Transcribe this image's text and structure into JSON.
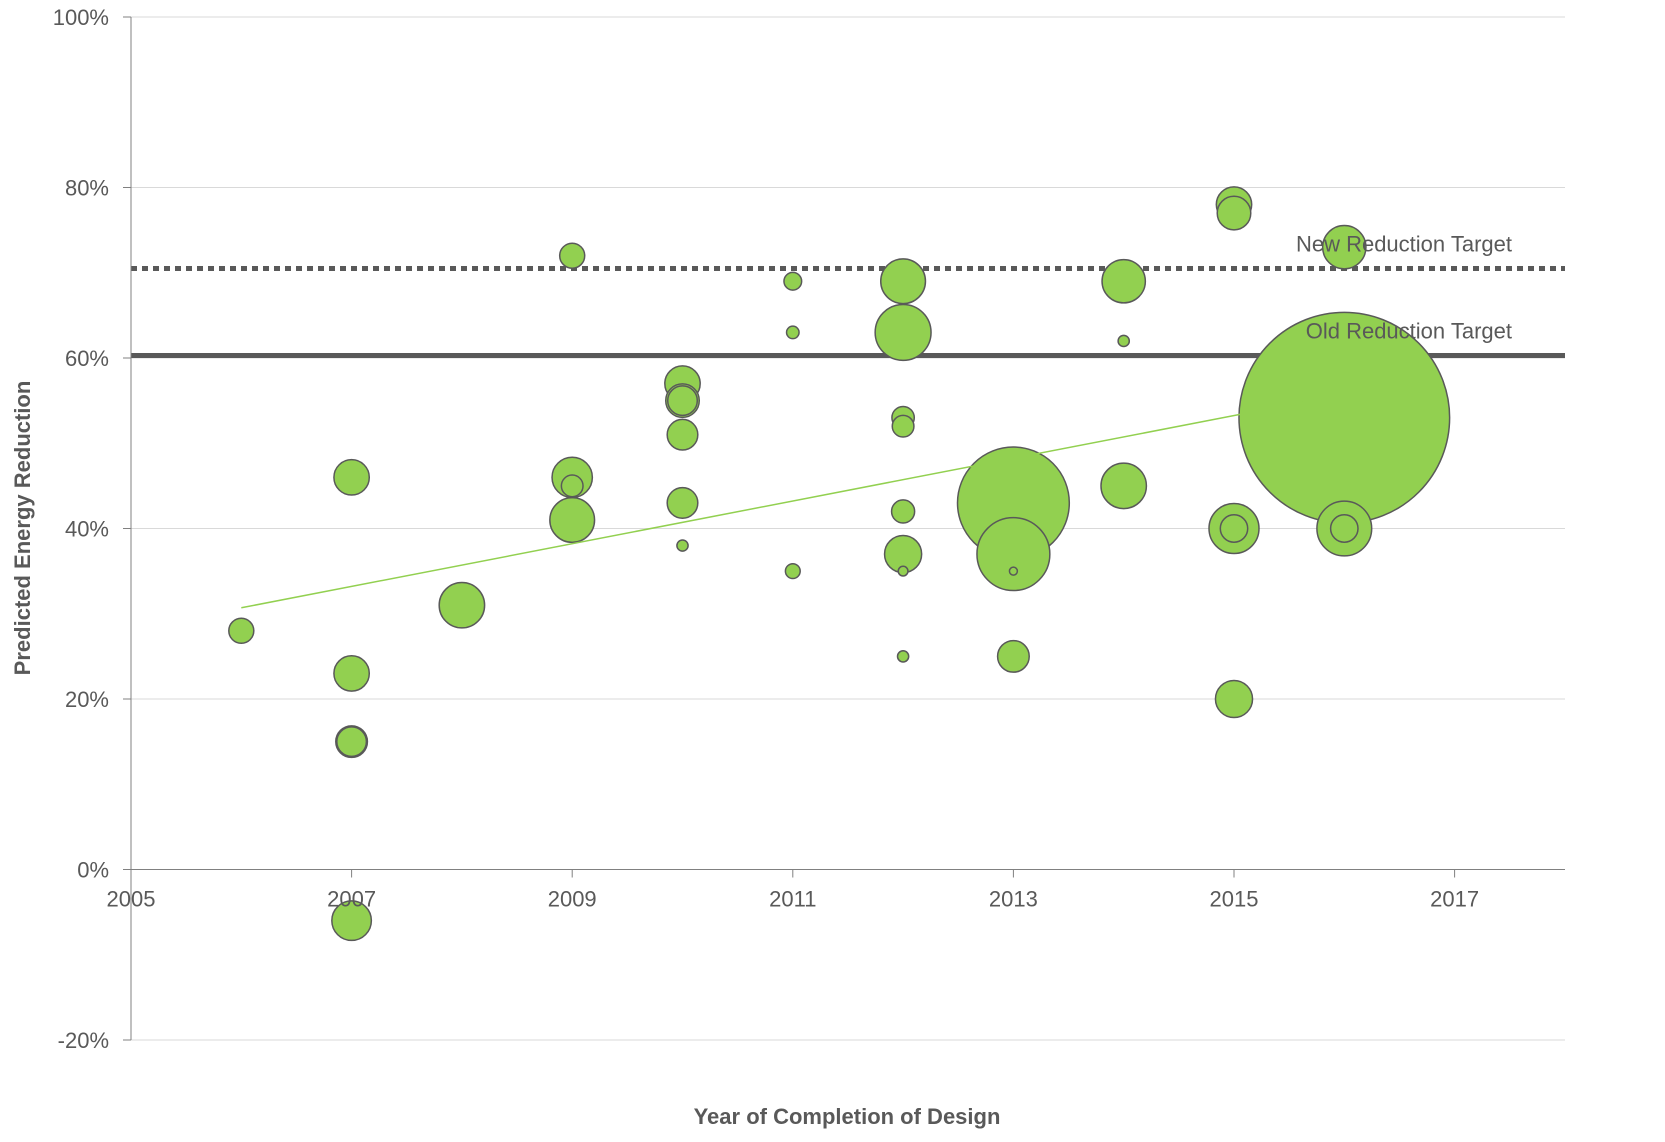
{
  "chart_data": {
    "type": "scatter",
    "subtype": "bubble",
    "title": "",
    "xlabel": "Year of Completion of Design",
    "ylabel": "Predicted Energy Reduction",
    "xlim": [
      2005,
      2018
    ],
    "ylim": [
      -0.2,
      1.0
    ],
    "x_ticks": [
      2005,
      2007,
      2009,
      2011,
      2013,
      2015,
      2017
    ],
    "x_tick_labels": [
      "2005",
      "2007",
      "2009",
      "2011",
      "2013",
      "2015",
      "2017"
    ],
    "y_ticks": [
      -0.2,
      0,
      0.2,
      0.4,
      0.6,
      0.8,
      1.0
    ],
    "y_tick_labels": [
      "-20%",
      "0%",
      "20%",
      "40%",
      "60%",
      "80%",
      "100%"
    ],
    "grid": "horizontal",
    "legend": "none",
    "colors": {
      "bubble_fill": "#92d050",
      "bubble_stroke": "#595959",
      "trend": "#92d050",
      "reference": "#595959",
      "grid": "#d9d9d9",
      "axis": "#808080"
    },
    "points": [
      {
        "x": 2006,
        "y": 0.28,
        "size": 1.0
      },
      {
        "x": 2007,
        "y": 0.46,
        "size": 2.0
      },
      {
        "x": 2007,
        "y": 0.23,
        "size": 2.0
      },
      {
        "x": 2007,
        "y": 0.15,
        "size": 1.6
      },
      {
        "x": 2007,
        "y": 0.15,
        "size": 1.4
      },
      {
        "x": 2007,
        "y": -0.06,
        "size": 2.5
      },
      {
        "x": 2008,
        "y": 0.31,
        "size": 3.3
      },
      {
        "x": 2009,
        "y": 0.72,
        "size": 1.0
      },
      {
        "x": 2009,
        "y": 0.46,
        "size": 2.6
      },
      {
        "x": 2009,
        "y": 0.41,
        "size": 3.2
      },
      {
        "x": 2009,
        "y": 0.45,
        "size": 0.75
      },
      {
        "x": 2010,
        "y": 0.57,
        "size": 2.0
      },
      {
        "x": 2010,
        "y": 0.55,
        "size": 1.8
      },
      {
        "x": 2010,
        "y": 0.55,
        "size": 1.4
      },
      {
        "x": 2010,
        "y": 0.51,
        "size": 1.5
      },
      {
        "x": 2010,
        "y": 0.43,
        "size": 1.5
      },
      {
        "x": 2010,
        "y": 0.38,
        "size": 0.2
      },
      {
        "x": 2011,
        "y": 0.69,
        "size": 0.5
      },
      {
        "x": 2011,
        "y": 0.63,
        "size": 0.25
      },
      {
        "x": 2011,
        "y": 0.35,
        "size": 0.35
      },
      {
        "x": 2012,
        "y": 0.69,
        "size": 3.2
      },
      {
        "x": 2012,
        "y": 0.63,
        "size": 5.0
      },
      {
        "x": 2012,
        "y": 0.53,
        "size": 0.8
      },
      {
        "x": 2012,
        "y": 0.52,
        "size": 0.75
      },
      {
        "x": 2012,
        "y": 0.42,
        "size": 0.85
      },
      {
        "x": 2012,
        "y": 0.37,
        "size": 2.2
      },
      {
        "x": 2012,
        "y": 0.35,
        "size": 0.15
      },
      {
        "x": 2012,
        "y": 0.25,
        "size": 0.2
      },
      {
        "x": 2013,
        "y": 0.43,
        "size": 20.0
      },
      {
        "x": 2013,
        "y": 0.37,
        "size": 8.5
      },
      {
        "x": 2013,
        "y": 0.35,
        "size": 0.1
      },
      {
        "x": 2013,
        "y": 0.25,
        "size": 1.6
      },
      {
        "x": 2014,
        "y": 0.69,
        "size": 3.0
      },
      {
        "x": 2014,
        "y": 0.62,
        "size": 0.2
      },
      {
        "x": 2014,
        "y": 0.45,
        "size": 3.3
      },
      {
        "x": 2015,
        "y": 0.78,
        "size": 2.0
      },
      {
        "x": 2015,
        "y": 0.77,
        "size": 1.8
      },
      {
        "x": 2015,
        "y": 0.4,
        "size": 4.0
      },
      {
        "x": 2015,
        "y": 0.4,
        "size": 1.2
      },
      {
        "x": 2015,
        "y": 0.2,
        "size": 2.2
      },
      {
        "x": 2016,
        "y": 0.73,
        "size": 3.0
      },
      {
        "x": 2016,
        "y": 0.53,
        "size": 71.0
      },
      {
        "x": 2016,
        "y": 0.4,
        "size": 4.8
      },
      {
        "x": 2016,
        "y": 0.4,
        "size": 1.2
      }
    ],
    "trendline": {
      "type": "linear",
      "x": [
        2006,
        2015.9
      ],
      "y": [
        0.307,
        0.555
      ]
    },
    "reference_lines": [
      {
        "label": "New Reduction Target",
        "y": 0.705,
        "style": "dotted"
      },
      {
        "label": "Old Reduction Target",
        "y": 0.603,
        "style": "solid"
      }
    ]
  }
}
